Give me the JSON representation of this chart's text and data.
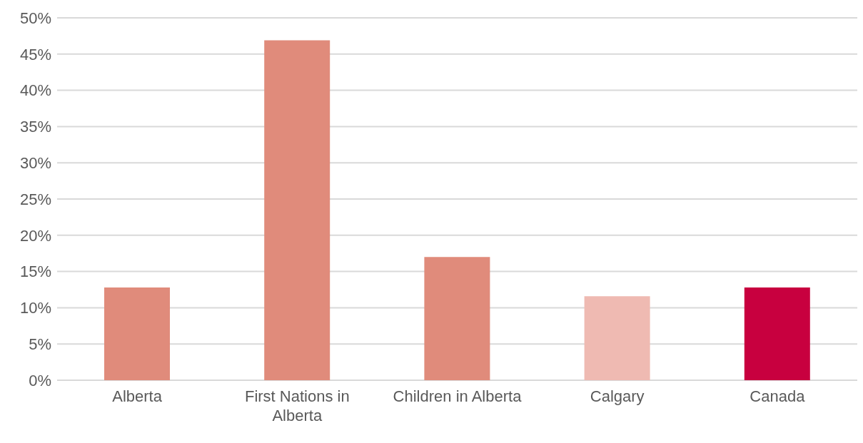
{
  "chart_data": {
    "type": "bar",
    "categories": [
      "Alberta",
      "First Nations in Alberta",
      "Children in Alberta",
      "Calgary",
      "Canada"
    ],
    "values": [
      12.8,
      46.9,
      17.0,
      11.6,
      12.8
    ],
    "colors": [
      "#e08b7b",
      "#e08b7b",
      "#e08b7b",
      "#efbab2",
      "#c8003f"
    ],
    "ylim": [
      0,
      50
    ],
    "yticks": [
      {
        "value": 0,
        "label": "0%"
      },
      {
        "value": 5,
        "label": "5%"
      },
      {
        "value": 10,
        "label": "10%"
      },
      {
        "value": 15,
        "label": "15%"
      },
      {
        "value": 20,
        "label": "20%"
      },
      {
        "value": 25,
        "label": "25%"
      },
      {
        "value": 30,
        "label": "30%"
      },
      {
        "value": 35,
        "label": "35%"
      },
      {
        "value": 40,
        "label": "40%"
      },
      {
        "value": 45,
        "label": "45%"
      },
      {
        "value": 50,
        "label": "50%"
      }
    ],
    "grid": "y"
  }
}
